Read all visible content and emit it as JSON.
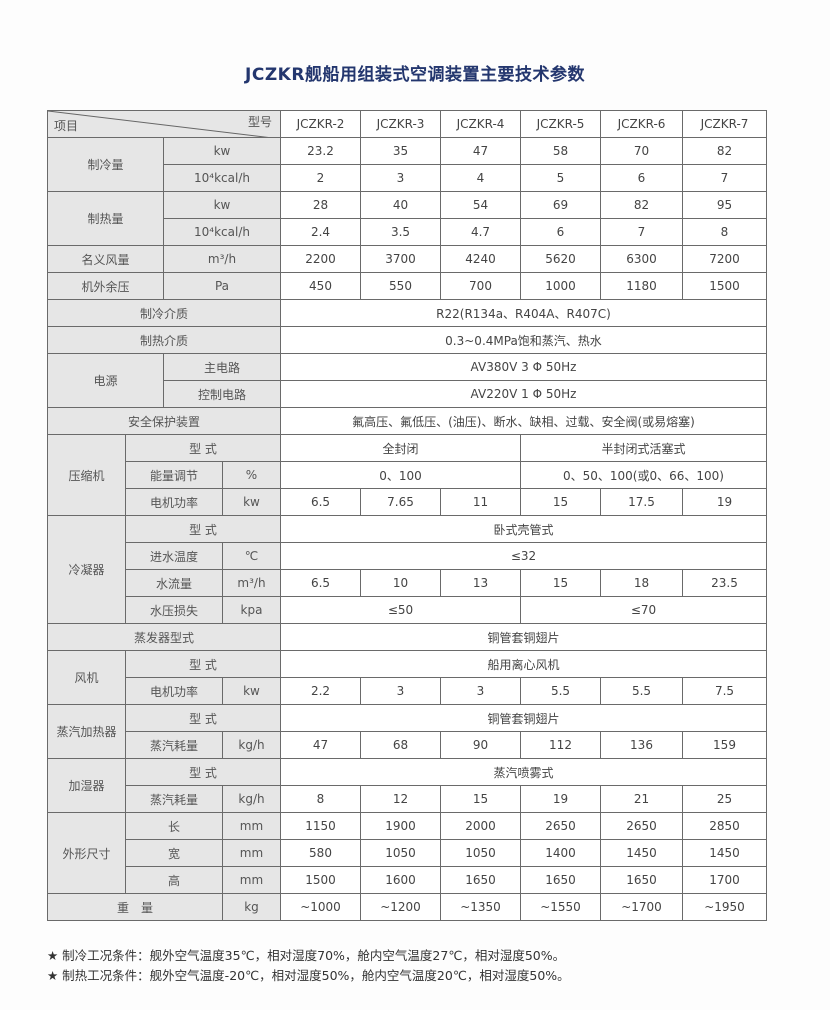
{
  "title": "JCZKR舰船用组装式空调装置主要技术参数",
  "header": {
    "item": "项目",
    "model": "型号",
    "models": [
      "JCZKR-2",
      "JCZKR-3",
      "JCZKR-4",
      "JCZKR-5",
      "JCZKR-6",
      "JCZKR-7"
    ]
  },
  "cooling": {
    "label": "制冷量",
    "unit_kw": "kw",
    "unit_kcal": "10⁴kcal/h",
    "kw": [
      "23.2",
      "35",
      "47",
      "58",
      "70",
      "82"
    ],
    "kcal": [
      "2",
      "3",
      "4",
      "5",
      "6",
      "7"
    ]
  },
  "heating": {
    "label": "制热量",
    "unit_kw": "kw",
    "unit_kcal": "10⁴kcal/h",
    "kw": [
      "28",
      "40",
      "54",
      "69",
      "82",
      "95"
    ],
    "kcal": [
      "2.4",
      "3.5",
      "4.7",
      "6",
      "7",
      "8"
    ]
  },
  "airflow": {
    "label": "名义风量",
    "unit": "m³/h",
    "values": [
      "2200",
      "3700",
      "4240",
      "5620",
      "6300",
      "7200"
    ]
  },
  "pressure": {
    "label": "机外余压",
    "unit": "Pa",
    "values": [
      "450",
      "550",
      "700",
      "1000",
      "1180",
      "1500"
    ]
  },
  "refrigerant": {
    "label": "制冷介质",
    "value": "R22(R134a、R404A、R407C)"
  },
  "heat_medium": {
    "label": "制热介质",
    "value": "0.3~0.4MPa饱和蒸汽、热水"
  },
  "power": {
    "label": "电源",
    "main_label": "主电路",
    "main": "AV380V 3 Φ 50Hz",
    "control_label": "控制电路",
    "control": "AV220V 1 Φ 50Hz"
  },
  "safety": {
    "label": "安全保护装置",
    "value": "氟高压、氟低压、(油压)、断水、缺相、过载、安全阀(或易熔塞)"
  },
  "compressor": {
    "label": "压缩机",
    "type_label": "型 式",
    "types": [
      "全封闭",
      "半封闭式活塞式"
    ],
    "capacity_label": "能量调节",
    "capacity_unit": "%",
    "capacity": [
      "0、100",
      "0、50、100(或0、66、100)"
    ],
    "motor_label": "电机功率",
    "motor_unit": "kw",
    "motor": [
      "6.5",
      "7.65",
      "11",
      "15",
      "17.5",
      "19"
    ]
  },
  "condenser": {
    "label": "冷凝器",
    "type_label": "型 式",
    "type": "卧式壳管式",
    "inlet_label": "进水温度",
    "inlet_unit": "℃",
    "inlet": "≤32",
    "flow_label": "水流量",
    "flow_unit": "m³/h",
    "flow": [
      "6.5",
      "10",
      "13",
      "15",
      "18",
      "23.5"
    ],
    "loss_label": "水压损失",
    "loss_unit": "kpa",
    "loss": [
      "≤50",
      "≤70"
    ]
  },
  "evaporator": {
    "label": "蒸发器型式",
    "value": "铜管套铜翅片"
  },
  "fan": {
    "label": "风机",
    "type_label": "型 式",
    "type": "船用离心风机",
    "motor_label": "电机功率",
    "motor_unit": "kw",
    "motor": [
      "2.2",
      "3",
      "3",
      "5.5",
      "5.5",
      "7.5"
    ]
  },
  "steam_heater": {
    "label": "蒸汽加热器",
    "type_label": "型 式",
    "type": "铜管套铜翅片",
    "consumption_label": "蒸汽耗量",
    "unit": "kg/h",
    "consumption": [
      "47",
      "68",
      "90",
      "112",
      "136",
      "159"
    ]
  },
  "humidifier": {
    "label": "加湿器",
    "type_label": "型 式",
    "type": "蒸汽喷雾式",
    "consumption_label": "蒸汽耗量",
    "unit": "kg/h",
    "consumption": [
      "8",
      "12",
      "15",
      "19",
      "21",
      "25"
    ]
  },
  "dimensions": {
    "label": "外形尺寸",
    "length_label": "长",
    "width_label": "宽",
    "height_label": "高",
    "unit": "mm",
    "length": [
      "1150",
      "1900",
      "2000",
      "2650",
      "2650",
      "2850"
    ],
    "width": [
      "580",
      "1050",
      "1050",
      "1400",
      "1450",
      "1450"
    ],
    "height": [
      "1500",
      "1600",
      "1650",
      "1650",
      "1650",
      "1700"
    ]
  },
  "weight": {
    "label": "重　量",
    "unit": "kg",
    "values": [
      "~1000",
      "~1200",
      "~1350",
      "~1550",
      "~1700",
      "~1950"
    ]
  },
  "notes": [
    "★ 制冷工况条件：舰外空气温度35℃，相对湿度70%，舱内空气温度27℃，相对湿度50%。",
    "★ 制热工况条件：舰外空气温度-20℃，相对湿度50%，舱内空气温度20℃，相对湿度50%。"
  ]
}
